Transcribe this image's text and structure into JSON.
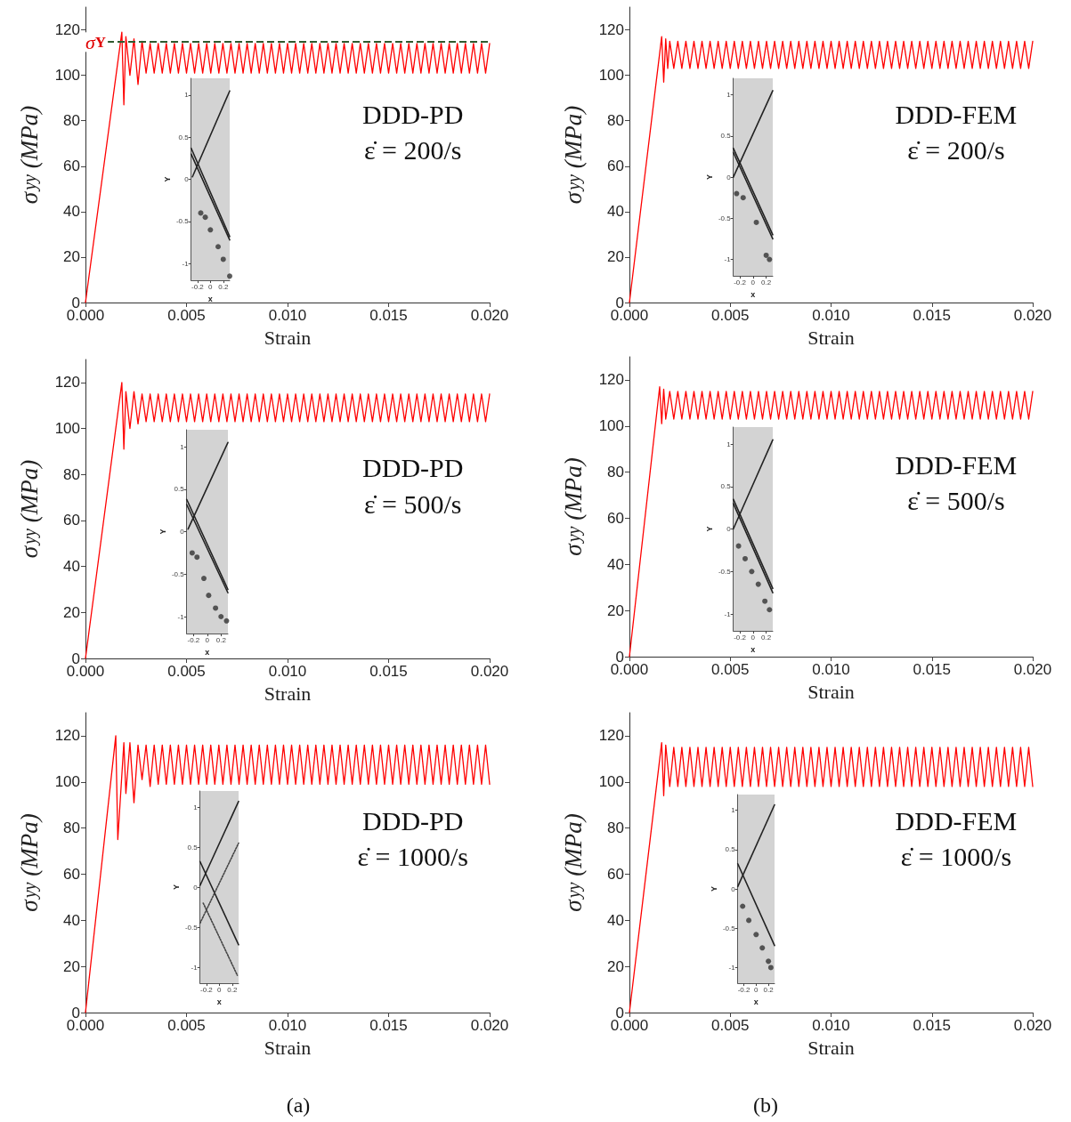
{
  "chart_data": [
    {
      "type": "line",
      "xlabel": "Strain",
      "ylabel": "σ$_{yy}$ (MPa)",
      "xlim": [
        0,
        0.02
      ],
      "ylim": [
        0,
        130
      ],
      "xticks": [
        {
          "value": 0,
          "label": "0.000"
        },
        {
          "value": 0.005,
          "label": "0.005"
        },
        {
          "value": 0.01,
          "label": "0.010"
        },
        {
          "value": 0.015,
          "label": "0.015"
        },
        {
          "value": 0.02,
          "label": "0.020"
        }
      ],
      "yticks": [
        0,
        20,
        40,
        60,
        80,
        100,
        120
      ],
      "color": "#ff0000",
      "annotations": [
        "DDD-PD",
        "ε̇ = 200/s"
      ],
      "ref_lines": [
        {
          "axis": "y",
          "value": 115,
          "label": "σ$_{Y}$",
          "color": "#2e5a2e",
          "line_style": "dashed"
        }
      ],
      "x": [
        0,
        0.0018,
        0.0019,
        0.002,
        0.0022,
        0.0024,
        0.0026,
        0.0028,
        0.003,
        0.0032,
        0.0034,
        0.0036,
        0.0038,
        0.004,
        0.0042,
        0.0044,
        0.0046,
        0.0048,
        0.005,
        0.0052,
        0.0054,
        0.0056,
        0.0058,
        0.006,
        0.0062,
        0.0064,
        0.0066,
        0.0068,
        0.007,
        0.0072,
        0.0074,
        0.0076,
        0.0078,
        0.008,
        0.0082,
        0.0084,
        0.0086,
        0.0088,
        0.009,
        0.0092,
        0.0094,
        0.0096,
        0.0098,
        0.01,
        0.0102,
        0.0104,
        0.0106,
        0.0108,
        0.011,
        0.0112,
        0.0114,
        0.0116,
        0.0118,
        0.012,
        0.0122,
        0.0124,
        0.0126,
        0.0128,
        0.013,
        0.0132,
        0.0134,
        0.0136,
        0.0138,
        0.014,
        0.0142,
        0.0144,
        0.0146,
        0.0148,
        0.015,
        0.0152,
        0.0154,
        0.0156,
        0.0158,
        0.016,
        0.0162,
        0.0164,
        0.0166,
        0.0168,
        0.017,
        0.0172,
        0.0174,
        0.0176,
        0.0178,
        0.018,
        0.0182,
        0.0184,
        0.0186,
        0.0188,
        0.019,
        0.0192,
        0.0194,
        0.0196,
        0.0198,
        0.02
      ],
      "values": [
        0,
        119,
        87,
        117,
        100,
        116,
        96,
        115,
        101,
        114,
        101,
        114,
        101,
        114,
        101,
        114,
        101,
        114,
        101,
        114,
        101,
        114,
        101,
        114,
        101,
        114,
        101,
        114,
        101,
        114,
        101,
        114,
        101,
        114,
        101,
        114,
        101,
        114,
        101,
        114,
        101,
        114,
        101,
        114,
        101,
        114,
        101,
        114,
        101,
        114,
        101,
        114,
        101,
        114,
        101,
        114,
        101,
        114,
        101,
        114,
        101,
        114,
        101,
        114,
        101,
        114,
        101,
        114,
        101,
        114,
        101,
        114,
        101,
        114,
        101,
        114,
        101,
        114,
        101,
        114,
        101,
        114,
        101,
        114,
        101,
        114,
        101,
        114,
        101,
        114,
        101,
        114,
        101,
        114
      ]
    },
    {
      "type": "line",
      "xlabel": "x",
      "ylabel": "Y",
      "xlim": [
        -0.3,
        0.3
      ],
      "ylim": [
        -1.2,
        1.2
      ],
      "xticks": [
        -0.2,
        0,
        0.2
      ],
      "yticks": [
        -1,
        -0.5,
        0,
        0.5,
        1
      ],
      "series": [
        {
          "color": "#222222",
          "x": [
            -0.28,
            0.3
          ],
          "values": [
            0.03,
            1.05
          ]
        },
        {
          "color": "#222222",
          "x": [
            -0.3,
            0.3
          ],
          "values": [
            0.37,
            -0.68
          ]
        },
        {
          "color": "#222222",
          "x": [
            -0.3,
            0.3
          ],
          "values": [
            0.3,
            -0.72
          ]
        },
        {
          "type": "scatter",
          "marker": "circle",
          "color": "#333333",
          "x": [
            -0.15,
            -0.08,
            0,
            0.12,
            0.2,
            0.3
          ],
          "values": [
            -0.4,
            -0.45,
            -0.6,
            -0.8,
            -0.95,
            -1.15
          ]
        }
      ]
    },
    {
      "type": "line",
      "xlabel": "Strain",
      "ylabel": "σ$_{yy}$ (MPa)",
      "xlim": [
        0,
        0.02
      ],
      "ylim": [
        0,
        130
      ],
      "xticks": [
        {
          "value": 0,
          "label": "0.000"
        },
        {
          "value": 0.005,
          "label": "0.005"
        },
        {
          "value": 0.01,
          "label": "0.010"
        },
        {
          "value": 0.015,
          "label": "0.015"
        },
        {
          "value": 0.02,
          "label": "0.020"
        }
      ],
      "yticks": [
        0,
        20,
        40,
        60,
        80,
        100,
        120
      ],
      "color": "#ff0000",
      "annotations": [
        "DDD-FEM",
        "ε̇ = 200/s"
      ],
      "x": [
        0,
        0.0016,
        0.0017,
        0.0018,
        0.0019,
        0.002,
        0.0022,
        0.0024,
        0.0026,
        0.0028,
        0.003,
        0.0032,
        0.0034,
        0.0036,
        0.0038,
        0.004,
        0.0042,
        0.0044,
        0.0046,
        0.0048,
        0.005,
        0.0052,
        0.0054,
        0.0056,
        0.0058,
        0.006,
        0.0062,
        0.0064,
        0.0066,
        0.0068,
        0.007,
        0.0072,
        0.0074,
        0.0076,
        0.0078,
        0.008,
        0.0082,
        0.0084,
        0.0086,
        0.0088,
        0.009,
        0.0092,
        0.0094,
        0.0096,
        0.0098,
        0.01,
        0.0102,
        0.0104,
        0.0106,
        0.0108,
        0.011,
        0.0112,
        0.0114,
        0.0116,
        0.0118,
        0.012,
        0.0122,
        0.0124,
        0.0126,
        0.0128,
        0.013,
        0.0132,
        0.0134,
        0.0136,
        0.0138,
        0.014,
        0.0142,
        0.0144,
        0.0146,
        0.0148,
        0.015,
        0.0152,
        0.0154,
        0.0156,
        0.0158,
        0.016,
        0.0162,
        0.0164,
        0.0166,
        0.0168,
        0.017,
        0.0172,
        0.0174,
        0.0176,
        0.0178,
        0.018,
        0.0182,
        0.0184,
        0.0186,
        0.0188,
        0.019,
        0.0192,
        0.0194,
        0.0196,
        0.0198,
        0.02
      ],
      "values": [
        0,
        117,
        97,
        116,
        103,
        115,
        103,
        115,
        103,
        115,
        103,
        115,
        103,
        115,
        103,
        115,
        103,
        115,
        103,
        115,
        103,
        115,
        103,
        115,
        103,
        115,
        103,
        115,
        103,
        115,
        103,
        115,
        103,
        115,
        103,
        115,
        103,
        115,
        103,
        115,
        103,
        115,
        103,
        115,
        103,
        115,
        103,
        115,
        103,
        115,
        103,
        115,
        103,
        115,
        103,
        115,
        103,
        115,
        103,
        115,
        103,
        115,
        103,
        115,
        103,
        115,
        103,
        115,
        103,
        115,
        103,
        115,
        103,
        115,
        103,
        115,
        103,
        115,
        103,
        115,
        103,
        115,
        103,
        115,
        103,
        115,
        103,
        115,
        103,
        115,
        103,
        115,
        103,
        115,
        103,
        115
      ]
    },
    {
      "type": "line",
      "xlabel": "x",
      "ylabel": "Y",
      "xlim": [
        -0.3,
        0.3
      ],
      "ylim": [
        -1.2,
        1.2
      ],
      "xticks": [
        -0.2,
        0,
        0.2
      ],
      "yticks": [
        -1,
        -0.5,
        0,
        0.5,
        1
      ],
      "series": [
        {
          "color": "#222222",
          "x": [
            -0.3,
            0.3
          ],
          "values": [
            0,
            1.05
          ]
        },
        {
          "color": "#222222",
          "x": [
            -0.3,
            0.3
          ],
          "values": [
            0.35,
            -0.7
          ]
        },
        {
          "color": "#222222",
          "x": [
            -0.3,
            0.3
          ],
          "values": [
            0.3,
            -0.75
          ]
        },
        {
          "type": "scatter",
          "marker": "circle",
          "color": "#333333",
          "x": [
            -0.25,
            -0.15,
            0.05,
            0.2,
            0.25
          ],
          "values": [
            -0.2,
            -0.25,
            -0.55,
            -0.95,
            -1
          ]
        }
      ]
    },
    {
      "type": "line",
      "xlabel": "Strain",
      "ylabel": "σ$_{yy}$ (MPa)",
      "xlim": [
        0,
        0.02
      ],
      "ylim": [
        0,
        130
      ],
      "xticks": [
        {
          "value": 0,
          "label": "0.000"
        },
        {
          "value": 0.005,
          "label": "0.005"
        },
        {
          "value": 0.01,
          "label": "0.010"
        },
        {
          "value": 0.015,
          "label": "0.015"
        },
        {
          "value": 0.02,
          "label": "0.020"
        }
      ],
      "yticks": [
        0,
        20,
        40,
        60,
        80,
        100,
        120
      ],
      "color": "#ff0000",
      "annotations": [
        "DDD-PD",
        "ε̇ = 500/s"
      ],
      "x": [
        0,
        0.0018,
        0.0019,
        0.002,
        0.0022,
        0.0024,
        0.0026,
        0.0028,
        0.003,
        0.0032,
        0.0034,
        0.0036,
        0.0038,
        0.004,
        0.0042,
        0.0044,
        0.0046,
        0.0048,
        0.005,
        0.0052,
        0.0054,
        0.0056,
        0.0058,
        0.006,
        0.0062,
        0.0064,
        0.0066,
        0.0068,
        0.007,
        0.0072,
        0.0074,
        0.0076,
        0.0078,
        0.008,
        0.0082,
        0.0084,
        0.0086,
        0.0088,
        0.009,
        0.0092,
        0.0094,
        0.0096,
        0.0098,
        0.01,
        0.0102,
        0.0104,
        0.0106,
        0.0108,
        0.011,
        0.0112,
        0.0114,
        0.0116,
        0.0118,
        0.012,
        0.0122,
        0.0124,
        0.0126,
        0.0128,
        0.013,
        0.0132,
        0.0134,
        0.0136,
        0.0138,
        0.014,
        0.0142,
        0.0144,
        0.0146,
        0.0148,
        0.015,
        0.0152,
        0.0154,
        0.0156,
        0.0158,
        0.016,
        0.0162,
        0.0164,
        0.0166,
        0.0168,
        0.017,
        0.0172,
        0.0174,
        0.0176,
        0.0178,
        0.018,
        0.0182,
        0.0184,
        0.0186,
        0.0188,
        0.019,
        0.0192,
        0.0194,
        0.0196,
        0.0198,
        0.02
      ],
      "values": [
        0,
        120,
        91,
        116,
        100,
        116,
        102,
        115,
        103,
        115,
        103,
        115,
        103,
        115,
        103,
        115,
        103,
        115,
        103,
        115,
        103,
        115,
        103,
        115,
        103,
        115,
        103,
        115,
        103,
        115,
        103,
        115,
        103,
        115,
        103,
        115,
        103,
        115,
        103,
        115,
        103,
        115,
        103,
        115,
        103,
        115,
        103,
        115,
        103,
        115,
        103,
        115,
        103,
        115,
        103,
        115,
        103,
        115,
        103,
        115,
        103,
        115,
        103,
        115,
        103,
        115,
        103,
        115,
        103,
        115,
        103,
        115,
        103,
        115,
        103,
        115,
        103,
        115,
        103,
        115,
        103,
        115,
        103,
        115,
        103,
        115,
        103,
        115,
        103,
        115,
        103,
        115,
        103,
        115
      ]
    },
    {
      "type": "line",
      "xlabel": "x",
      "ylabel": "Y",
      "xlim": [
        -0.3,
        0.3
      ],
      "ylim": [
        -1.2,
        1.2
      ],
      "xticks": [
        -0.2,
        0,
        0.2
      ],
      "yticks": [
        -1,
        -0.5,
        0,
        0.5,
        1
      ],
      "series": [
        {
          "color": "#222222",
          "x": [
            -0.28,
            0.3
          ],
          "values": [
            0.03,
            1.05
          ]
        },
        {
          "color": "#222222",
          "x": [
            -0.3,
            0.3
          ],
          "values": [
            0.38,
            -0.68
          ]
        },
        {
          "color": "#222222",
          "x": [
            -0.3,
            0.3
          ],
          "values": [
            0.32,
            -0.72
          ]
        },
        {
          "type": "scatter",
          "marker": "circle",
          "color": "#333333",
          "x": [
            -0.22,
            -0.15,
            -0.05,
            0.02,
            0.12,
            0.2,
            0.28
          ],
          "values": [
            -0.25,
            -0.3,
            -0.55,
            -0.75,
            -0.9,
            -1,
            -1.05
          ]
        }
      ]
    },
    {
      "type": "line",
      "xlabel": "Strain",
      "ylabel": "σ$_{yy}$ (MPa)",
      "xlim": [
        0,
        0.02
      ],
      "ylim": [
        0,
        130
      ],
      "xticks": [
        {
          "value": 0,
          "label": "0.000"
        },
        {
          "value": 0.005,
          "label": "0.005"
        },
        {
          "value": 0.01,
          "label": "0.010"
        },
        {
          "value": 0.015,
          "label": "0.015"
        },
        {
          "value": 0.02,
          "label": "0.020"
        }
      ],
      "yticks": [
        0,
        20,
        40,
        60,
        80,
        100,
        120
      ],
      "color": "#ff0000",
      "annotations": [
        "DDD-FEM",
        "ε̇ = 500/s"
      ],
      "x": [
        0,
        0.0015,
        0.0016,
        0.0017,
        0.0018,
        0.002,
        0.0022,
        0.0024,
        0.0026,
        0.0028,
        0.003,
        0.0032,
        0.0034,
        0.0036,
        0.0038,
        0.004,
        0.0042,
        0.0044,
        0.0046,
        0.0048,
        0.005,
        0.0052,
        0.0054,
        0.0056,
        0.0058,
        0.006,
        0.0062,
        0.0064,
        0.0066,
        0.0068,
        0.007,
        0.0072,
        0.0074,
        0.0076,
        0.0078,
        0.008,
        0.0082,
        0.0084,
        0.0086,
        0.0088,
        0.009,
        0.0092,
        0.0094,
        0.0096,
        0.0098,
        0.01,
        0.0102,
        0.0104,
        0.0106,
        0.0108,
        0.011,
        0.0112,
        0.0114,
        0.0116,
        0.0118,
        0.012,
        0.0122,
        0.0124,
        0.0126,
        0.0128,
        0.013,
        0.0132,
        0.0134,
        0.0136,
        0.0138,
        0.014,
        0.0142,
        0.0144,
        0.0146,
        0.0148,
        0.015,
        0.0152,
        0.0154,
        0.0156,
        0.0158,
        0.016,
        0.0162,
        0.0164,
        0.0166,
        0.0168,
        0.017,
        0.0172,
        0.0174,
        0.0176,
        0.0178,
        0.018,
        0.0182,
        0.0184,
        0.0186,
        0.0188,
        0.019,
        0.0192,
        0.0194,
        0.0196,
        0.0198,
        0.02
      ],
      "values": [
        0,
        117,
        101,
        116,
        103,
        115,
        103,
        115,
        103,
        115,
        103,
        115,
        103,
        115,
        103,
        115,
        103,
        115,
        103,
        115,
        103,
        115,
        103,
        115,
        103,
        115,
        103,
        115,
        103,
        115,
        103,
        115,
        103,
        115,
        103,
        115,
        103,
        115,
        103,
        115,
        103,
        115,
        103,
        115,
        103,
        115,
        103,
        115,
        103,
        115,
        103,
        115,
        103,
        115,
        103,
        115,
        103,
        115,
        103,
        115,
        103,
        115,
        103,
        115,
        103,
        115,
        103,
        115,
        103,
        115,
        103,
        115,
        103,
        115,
        103,
        115,
        103,
        115,
        103,
        115,
        103,
        115,
        103,
        115,
        103,
        115,
        103,
        115,
        103,
        115,
        103,
        115,
        103,
        115,
        103,
        115
      ]
    },
    {
      "type": "line",
      "xlabel": "x",
      "ylabel": "Y",
      "xlim": [
        -0.3,
        0.3
      ],
      "ylim": [
        -1.2,
        1.2
      ],
      "xticks": [
        -0.2,
        0,
        0.2
      ],
      "yticks": [
        -1,
        -0.5,
        0,
        0.5,
        1
      ],
      "series": [
        {
          "color": "#222222",
          "x": [
            -0.3,
            0.3
          ],
          "values": [
            0,
            1.05
          ]
        },
        {
          "color": "#222222",
          "x": [
            -0.3,
            0.3
          ],
          "values": [
            0.35,
            -0.7
          ]
        },
        {
          "color": "#222222",
          "x": [
            -0.3,
            0.3
          ],
          "values": [
            0.3,
            -0.75
          ]
        },
        {
          "type": "scatter",
          "marker": "circle",
          "color": "#333333",
          "x": [
            -0.22,
            -0.12,
            -0.02,
            0.08,
            0.18,
            0.25
          ],
          "values": [
            -0.2,
            -0.35,
            -0.5,
            -0.65,
            -0.85,
            -0.95
          ]
        }
      ]
    },
    {
      "type": "line",
      "xlabel": "Strain",
      "ylabel": "σ$_{yy}$ (MPa)",
      "xlim": [
        0,
        0.02
      ],
      "ylim": [
        0,
        130
      ],
      "xticks": [
        {
          "value": 0,
          "label": "0.000"
        },
        {
          "value": 0.005,
          "label": "0.005"
        },
        {
          "value": 0.01,
          "label": "0.010"
        },
        {
          "value": 0.015,
          "label": "0.015"
        },
        {
          "value": 0.02,
          "label": "0.020"
        }
      ],
      "yticks": [
        0,
        20,
        40,
        60,
        80,
        100,
        120
      ],
      "color": "#ff0000",
      "annotations": [
        "DDD-PD",
        "ε̇ = 1000/s",
        "(a)"
      ],
      "x": [
        0,
        0.0015,
        0.0016,
        0.0019,
        0.002,
        0.0022,
        0.0024,
        0.0026,
        0.0028,
        0.003,
        0.0032,
        0.0034,
        0.0036,
        0.0038,
        0.004,
        0.0042,
        0.0044,
        0.0046,
        0.0048,
        0.005,
        0.0052,
        0.0054,
        0.0056,
        0.0058,
        0.006,
        0.0062,
        0.0064,
        0.0066,
        0.0068,
        0.007,
        0.0072,
        0.0074,
        0.0076,
        0.0078,
        0.008,
        0.0082,
        0.0084,
        0.0086,
        0.0088,
        0.009,
        0.0092,
        0.0094,
        0.0096,
        0.0098,
        0.01,
        0.0102,
        0.0104,
        0.0106,
        0.0108,
        0.011,
        0.0112,
        0.0114,
        0.0116,
        0.0118,
        0.012,
        0.0122,
        0.0124,
        0.0126,
        0.0128,
        0.013,
        0.0132,
        0.0134,
        0.0136,
        0.0138,
        0.014,
        0.0142,
        0.0144,
        0.0146,
        0.0148,
        0.015,
        0.0152,
        0.0154,
        0.0156,
        0.0158,
        0.016,
        0.0162,
        0.0164,
        0.0166,
        0.0168,
        0.017,
        0.0172,
        0.0174,
        0.0176,
        0.0178,
        0.018,
        0.0182,
        0.0184,
        0.0186,
        0.0188,
        0.019,
        0.0192,
        0.0194,
        0.0196,
        0.0198,
        0.02
      ],
      "values": [
        0,
        120,
        75,
        117,
        95,
        117,
        91,
        116,
        101,
        116,
        98,
        116,
        99,
        116,
        99,
        116,
        99,
        116,
        99,
        116,
        99,
        116,
        99,
        116,
        99,
        116,
        99,
        116,
        99,
        116,
        99,
        116,
        99,
        116,
        99,
        116,
        99,
        116,
        99,
        116,
        99,
        116,
        99,
        116,
        99,
        116,
        99,
        116,
        99,
        116,
        99,
        116,
        99,
        116,
        99,
        116,
        99,
        116,
        99,
        116,
        99,
        116,
        99,
        116,
        99,
        116,
        99,
        116,
        99,
        116,
        99,
        116,
        99,
        116,
        99,
        116,
        99,
        116,
        99,
        116,
        99,
        116,
        99,
        116,
        99,
        116,
        99,
        116,
        99,
        116,
        99,
        116,
        99,
        116,
        99
      ]
    },
    {
      "type": "line",
      "xlabel": "x",
      "ylabel": "Y",
      "xlim": [
        -0.3,
        0.3
      ],
      "ylim": [
        -1.2,
        1.2
      ],
      "xticks": [
        -0.2,
        0,
        0.2
      ],
      "yticks": [
        -1,
        -0.5,
        0,
        0.5,
        1
      ],
      "series": [
        {
          "color": "#222222",
          "x": [
            -0.3,
            0.3
          ],
          "values": [
            0.02,
            1.07
          ]
        },
        {
          "color": "#222222",
          "x": [
            -0.3,
            0.3
          ],
          "values": [
            0.32,
            -0.72
          ]
        },
        {
          "color": "#444444",
          "line_style": "dotted",
          "x": [
            -0.3,
            0.3
          ],
          "values": [
            -0.45,
            0.55
          ]
        },
        {
          "color": "#444444",
          "line_style": "dotted",
          "x": [
            -0.25,
            0.28
          ],
          "values": [
            -0.2,
            -1.1
          ]
        }
      ]
    },
    {
      "type": "line",
      "xlabel": "Strain",
      "ylabel": "σ$_{yy}$ (MPa)",
      "xlim": [
        0,
        0.02
      ],
      "ylim": [
        0,
        130
      ],
      "xticks": [
        {
          "value": 0,
          "label": "0.000"
        },
        {
          "value": 0.005,
          "label": "0.005"
        },
        {
          "value": 0.01,
          "label": "0.010"
        },
        {
          "value": 0.015,
          "label": "0.015"
        },
        {
          "value": 0.02,
          "label": "0.020"
        }
      ],
      "yticks": [
        0,
        20,
        40,
        60,
        80,
        100,
        120
      ],
      "color": "#ff0000",
      "annotations": [
        "DDD-FEM",
        "ε̇ = 1000/s",
        "(b)"
      ],
      "x": [
        0,
        0.0016,
        0.0017,
        0.0018,
        0.002,
        0.0022,
        0.0024,
        0.0026,
        0.0028,
        0.003,
        0.0032,
        0.0034,
        0.0036,
        0.0038,
        0.004,
        0.0042,
        0.0044,
        0.0046,
        0.0048,
        0.005,
        0.0052,
        0.0054,
        0.0056,
        0.0058,
        0.006,
        0.0062,
        0.0064,
        0.0066,
        0.0068,
        0.007,
        0.0072,
        0.0074,
        0.0076,
        0.0078,
        0.008,
        0.0082,
        0.0084,
        0.0086,
        0.0088,
        0.009,
        0.0092,
        0.0094,
        0.0096,
        0.0098,
        0.01,
        0.0102,
        0.0104,
        0.0106,
        0.0108,
        0.011,
        0.0112,
        0.0114,
        0.0116,
        0.0118,
        0.012,
        0.0122,
        0.0124,
        0.0126,
        0.0128,
        0.013,
        0.0132,
        0.0134,
        0.0136,
        0.0138,
        0.014,
        0.0142,
        0.0144,
        0.0146,
        0.0148,
        0.015,
        0.0152,
        0.0154,
        0.0156,
        0.0158,
        0.016,
        0.0162,
        0.0164,
        0.0166,
        0.0168,
        0.017,
        0.0172,
        0.0174,
        0.0176,
        0.0178,
        0.018,
        0.0182,
        0.0184,
        0.0186,
        0.0188,
        0.019,
        0.0192,
        0.0194,
        0.0196,
        0.0198,
        0.02
      ],
      "values": [
        0,
        117,
        94,
        116,
        98,
        115,
        98,
        115,
        98,
        115,
        98,
        115,
        98,
        115,
        98,
        115,
        98,
        115,
        98,
        115,
        98,
        115,
        98,
        115,
        98,
        115,
        98,
        115,
        98,
        115,
        98,
        115,
        98,
        115,
        98,
        115,
        98,
        115,
        98,
        115,
        98,
        115,
        98,
        115,
        98,
        115,
        98,
        115,
        98,
        115,
        98,
        115,
        98,
        115,
        98,
        115,
        98,
        115,
        98,
        115,
        98,
        115,
        98,
        115,
        98,
        115,
        98,
        115,
        98,
        115,
        98,
        115,
        98,
        115,
        98,
        115,
        98,
        115,
        98,
        115,
        98,
        115,
        98,
        115,
        98,
        115,
        98,
        115,
        98,
        115,
        98,
        115,
        98,
        115,
        98
      ]
    },
    {
      "type": "line",
      "xlabel": "x",
      "ylabel": "Y",
      "xlim": [
        -0.3,
        0.3
      ],
      "ylim": [
        -1.2,
        1.2
      ],
      "xticks": [
        -0.2,
        0,
        0.2
      ],
      "yticks": [
        -1,
        -0.5,
        0,
        0.5,
        1
      ],
      "series": [
        {
          "color": "#222222",
          "x": [
            -0.3,
            0.3
          ],
          "values": [
            0.03,
            1.07
          ]
        },
        {
          "color": "#222222",
          "x": [
            -0.3,
            0.3
          ],
          "values": [
            0.32,
            -0.72
          ]
        },
        {
          "type": "scatter",
          "marker": "circle",
          "color": "#333333",
          "x": [
            -0.22,
            -0.12,
            0,
            0.1,
            0.2,
            0.24
          ],
          "values": [
            -0.22,
            -0.4,
            -0.58,
            -0.75,
            -0.92,
            -1
          ]
        }
      ]
    }
  ]
}
